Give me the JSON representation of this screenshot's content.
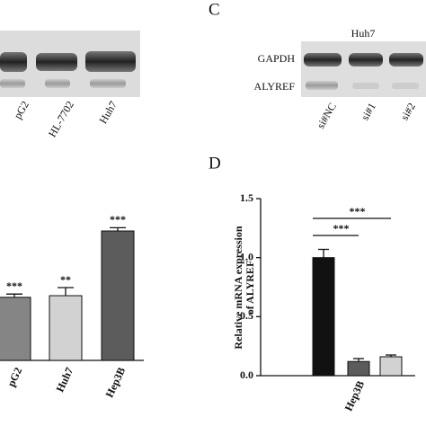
{
  "blot_a": {
    "lanes": [
      "pG2",
      "HL-7702",
      "Huh7"
    ]
  },
  "panel_c": {
    "label": "C",
    "cell": "Huh7",
    "rows": [
      "GAPDH",
      "ALYREF"
    ],
    "lanes": [
      "si#NC",
      "si#1",
      "si#2"
    ]
  },
  "chart_data": [
    {
      "type": "bar",
      "categories": [
        "pG2",
        "Huh7",
        "Hep3B"
      ],
      "values": [
        1.95,
        2.0,
        4.0
      ],
      "errors": [
        0.1,
        0.25,
        0.1
      ],
      "colors": [
        "#858585",
        "#d2d2d2",
        "#5c5c5c"
      ],
      "annotations": [
        "***",
        "**",
        "***"
      ],
      "ylim": [
        0,
        5
      ]
    },
    {
      "type": "bar",
      "panel": "D",
      "ylabel": [
        "Relative mRNA expression",
        "of ALYREF"
      ],
      "xlabel": "Hep3B",
      "categories": [
        null,
        null,
        null
      ],
      "values": [
        1.0,
        0.12,
        0.16
      ],
      "errors": [
        0.07,
        0.025,
        0.015
      ],
      "colors": [
        "#111111",
        "#5c5c5c",
        "#d2d2d2"
      ],
      "significance": [
        "***",
        "***"
      ],
      "ylim": [
        0,
        1.5
      ],
      "yticks": [
        {
          "value": 0,
          "label": "0.0"
        },
        0.5,
        {
          "value": 1,
          "label": "1.0"
        },
        1.5
      ]
    }
  ]
}
